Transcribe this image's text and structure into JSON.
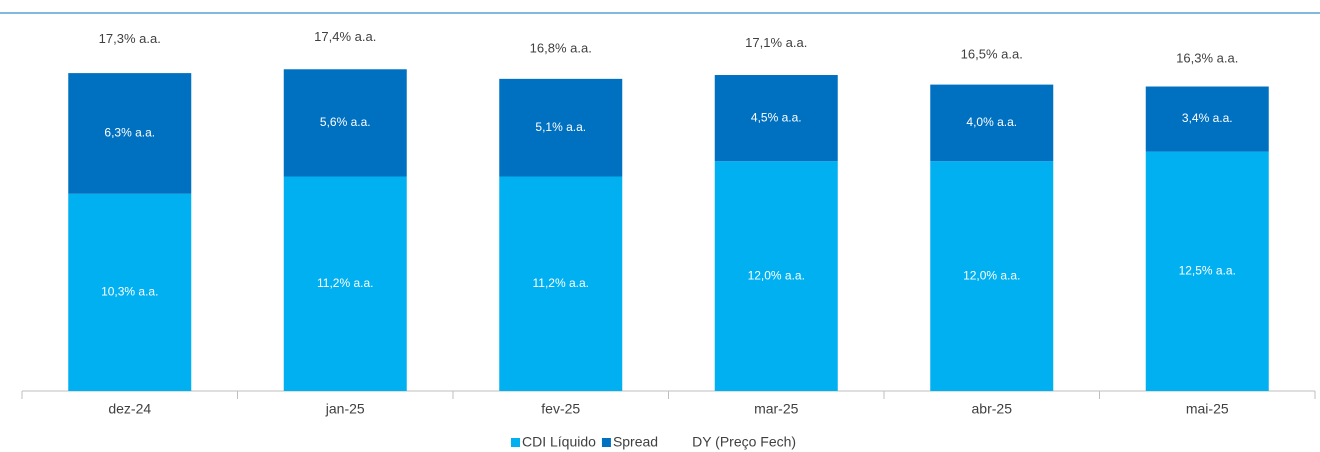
{
  "chart_data": {
    "type": "stacked-bar",
    "categories": [
      "dez-24",
      "jan-25",
      "fev-25",
      "mar-25",
      "abr-25",
      "mai-25"
    ],
    "series": [
      {
        "name": "CDI Líquido",
        "color": "#00b0f0",
        "values": [
          10.3,
          11.2,
          11.2,
          12.0,
          12.0,
          12.5
        ],
        "value_labels": [
          "10,3% a.a.",
          "11,2% a.a.",
          "11,2% a.a.",
          "12,0% a.a.",
          "12,0% a.a.",
          "12,5% a.a."
        ]
      },
      {
        "name": "Spread",
        "color": "#0070c0",
        "values": [
          6.3,
          5.6,
          5.1,
          4.5,
          4.0,
          3.4
        ],
        "value_labels": [
          "6,3% a.a.",
          "5,6% a.a.",
          "5,1% a.a.",
          "4,5% a.a.",
          "4,0% a.a.",
          "3,4% a.a."
        ]
      },
      {
        "name": "DY (Preço Fech)",
        "type": "line",
        "color": "none",
        "values": [
          17.3,
          17.4,
          16.8,
          17.1,
          16.5,
          16.3
        ],
        "value_labels": [
          "17,3% a.a.",
          "17,4% a.a.",
          "16,8% a.a.",
          "17,1% a.a.",
          "16,5% a.a.",
          "16,3% a.a."
        ]
      }
    ],
    "ylim": [
      0,
      20
    ]
  }
}
